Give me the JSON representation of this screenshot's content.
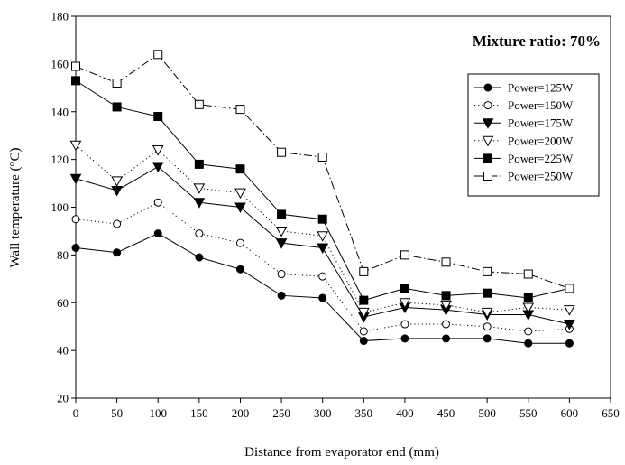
{
  "chart_data": {
    "type": "line",
    "xlabel": "Distance from evaporator end (mm)",
    "ylabel": "Wall temperature (°C)",
    "annotation": "Mixture ratio:  70%",
    "xlim": [
      0,
      650
    ],
    "ylim": [
      20,
      180
    ],
    "xticks": [
      0,
      50,
      100,
      150,
      200,
      250,
      300,
      350,
      400,
      450,
      500,
      550,
      600,
      650
    ],
    "yticks": [
      20,
      40,
      60,
      80,
      100,
      120,
      140,
      160,
      180
    ],
    "grid": false,
    "legend_position": "right",
    "x": [
      0,
      50,
      100,
      150,
      200,
      250,
      300,
      350,
      400,
      450,
      500,
      550,
      600
    ],
    "series": [
      {
        "name": "Power=125W",
        "marker": "circle-filled",
        "dash": "solid",
        "values": [
          83,
          81,
          89,
          79,
          74,
          63,
          62,
          44,
          45,
          45,
          45,
          43,
          43
        ]
      },
      {
        "name": "Power=150W",
        "marker": "circle-open",
        "dash": "dotted",
        "values": [
          95,
          93,
          102,
          89,
          85,
          72,
          71,
          48,
          51,
          51,
          50,
          48,
          49
        ]
      },
      {
        "name": "Power=175W",
        "marker": "triangle-down-filled",
        "dash": "solid",
        "values": [
          112,
          107,
          117,
          102,
          100,
          85,
          83,
          54,
          58,
          57,
          55,
          55,
          51
        ]
      },
      {
        "name": "Power=200W",
        "marker": "triangle-down-open",
        "dash": "dotted",
        "values": [
          126,
          111,
          124,
          108,
          106,
          90,
          88,
          56,
          60,
          59,
          56,
          58,
          57
        ]
      },
      {
        "name": "Power=225W",
        "marker": "square-filled",
        "dash": "solid",
        "values": [
          153,
          142,
          138,
          118,
          116,
          97,
          95,
          61,
          66,
          63,
          64,
          62,
          66
        ]
      },
      {
        "name": "Power=250W",
        "marker": "square-open",
        "dash": "dashdot",
        "values": [
          159,
          152,
          164,
          143,
          141,
          123,
          121,
          73,
          80,
          77,
          73,
          72,
          66
        ]
      }
    ]
  }
}
